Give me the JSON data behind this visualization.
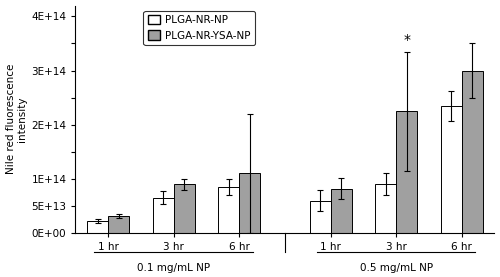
{
  "groups": [
    "1 hr",
    "3 hr",
    "6 hr",
    "1 hr",
    "3 hr",
    "6 hr"
  ],
  "group_labels": [
    "0.1 mg/mL NP",
    "0.5 mg/mL NP"
  ],
  "series1_name": "PLGA-NR-NP",
  "series2_name": "PLGA-NR-YSA-NP",
  "series1_values": [
    22000000000000.0,
    65000000000000.0,
    85000000000000.0,
    60000000000000.0,
    90000000000000.0,
    235000000000000.0
  ],
  "series2_values": [
    32000000000000.0,
    90000000000000.0,
    110000000000000.0,
    82000000000000.0,
    225000000000000.0,
    300000000000000.0
  ],
  "series1_errors": [
    4000000000000.0,
    12000000000000.0,
    15000000000000.0,
    20000000000000.0,
    20000000000000.0,
    28000000000000.0
  ],
  "series2_errors": [
    4000000000000.0,
    10000000000000.0,
    110000000000000.0,
    20000000000000.0,
    110000000000000.0,
    50000000000000.0
  ],
  "ylim": [
    0,
    420000000000000.0
  ],
  "ytick_vals": [
    0,
    50000000000000.0,
    100000000000000.0,
    150000000000000.0,
    200000000000000.0,
    250000000000000.0,
    300000000000000.0,
    350000000000000.0,
    400000000000000.0
  ],
  "ytick_labels": [
    "0E+00",
    "5E+13",
    "1E+14",
    "2E+14",
    "2E+14",
    "3E+14",
    "3E+14",
    "4E+14",
    "4E+14"
  ],
  "color_series1": "#ffffff",
  "color_series2": "#a0a0a0",
  "edgecolor": "#000000",
  "bar_width": 0.32,
  "ylabel": "Nile red fluorescence\nintensity",
  "star_annotation": "*",
  "figsize": [
    5.0,
    2.77
  ],
  "dpi": 100
}
